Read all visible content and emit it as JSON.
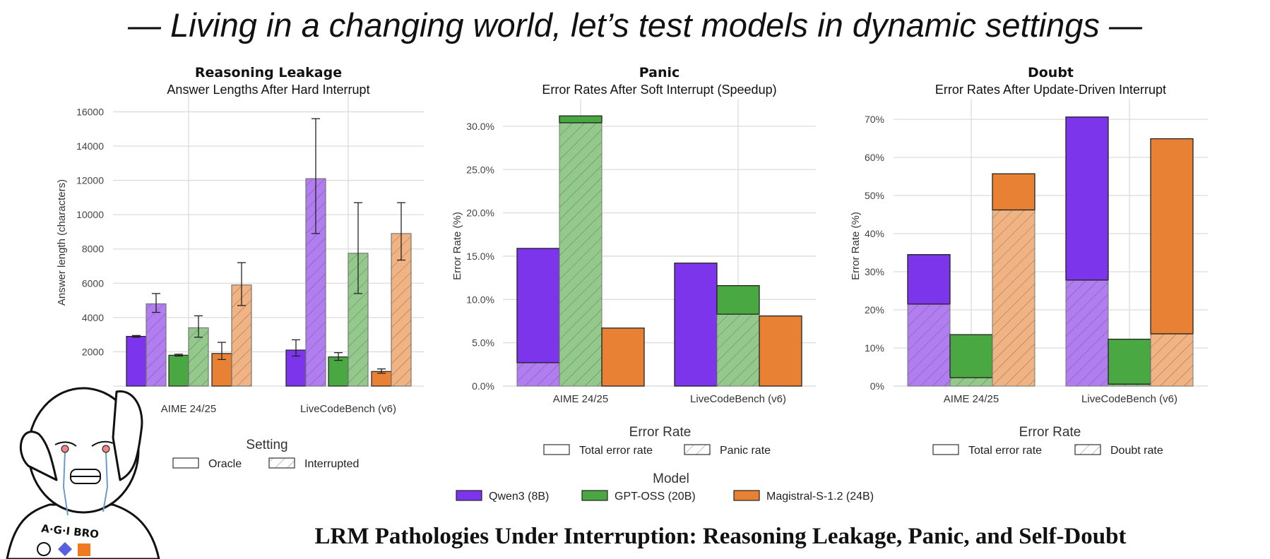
{
  "header": {
    "title": "— Living in a changing world, let’s test models in dynamic settings —"
  },
  "footer": {
    "title": "LRM Pathologies Under Interruption: Reasoning Leakage, Panic, and Self-Doubt"
  },
  "meme": {
    "shirt_text": "A·G·I BRO"
  },
  "colors": {
    "Qwen3 (8B)": {
      "solid": "#7c35ea",
      "light": "#b17df1"
    },
    "GPT-OSS (20B)": {
      "solid": "#4aa842",
      "light": "#94c98c"
    },
    "Magistral-S-1.2 (24B)": {
      "solid": "#e98134",
      "light": "#f2b383"
    }
  },
  "model_legend": {
    "title": "Model",
    "entries": [
      "Qwen3 (8B)",
      "GPT-OSS (20B)",
      "Magistral-S-1.2 (24B)"
    ]
  },
  "chart_data": [
    {
      "type": "bar",
      "title": "Reasoning Leakage",
      "subtitle": "Answer Lengths After Hard Interrupt",
      "xlabel": "",
      "ylabel": "Answer length (characters)",
      "categories": [
        "AIME 24/25",
        "LiveCodeBench (v6)"
      ],
      "ylim": [
        0,
        16000
      ],
      "yticks": [
        2000,
        4000,
        6000,
        8000,
        10000,
        12000,
        14000,
        16000
      ],
      "ytick_labels": [
        "2000",
        "4000",
        "6000",
        "8000",
        "10000",
        "12000",
        "14000",
        "16000"
      ],
      "grid": true,
      "legend": {
        "title": "Setting",
        "entries": [
          "Oracle",
          "Interrupted"
        ],
        "placement": "bottom"
      },
      "series": [
        {
          "model": "Qwen3 (8B)",
          "setting": "Oracle",
          "values": [
            2900,
            2100
          ],
          "err_low": [
            2850,
            1750
          ],
          "err_high": [
            2950,
            2700
          ]
        },
        {
          "model": "Qwen3 (8B)",
          "setting": "Interrupted",
          "values": [
            4800,
            12100
          ],
          "err_low": [
            4300,
            8900
          ],
          "err_high": [
            5400,
            15600
          ]
        },
        {
          "model": "GPT-OSS (20B)",
          "setting": "Oracle",
          "values": [
            1800,
            1700
          ],
          "err_low": [
            1750,
            1500
          ],
          "err_high": [
            1860,
            1950
          ]
        },
        {
          "model": "GPT-OSS (20B)",
          "setting": "Interrupted",
          "values": [
            3400,
            7750
          ],
          "err_low": [
            2850,
            5400
          ],
          "err_high": [
            4100,
            10700
          ]
        },
        {
          "model": "Magistral-S-1.2 (24B)",
          "setting": "Oracle",
          "values": [
            1900,
            850
          ],
          "err_low": [
            1550,
            750
          ],
          "err_high": [
            2550,
            1000
          ]
        },
        {
          "model": "Magistral-S-1.2 (24B)",
          "setting": "Interrupted",
          "values": [
            5900,
            8900
          ],
          "err_low": [
            4700,
            7350
          ],
          "err_high": [
            7200,
            10700
          ]
        }
      ]
    },
    {
      "type": "bar",
      "stacked_overlay": true,
      "title": "Panic",
      "subtitle": "Error Rates After Soft Interrupt (Speedup)",
      "xlabel": "",
      "ylabel": "Error Rate (%)",
      "categories": [
        "AIME 24/25",
        "LiveCodeBench (v6)"
      ],
      "ylim": [
        0,
        32
      ],
      "yticks": [
        0,
        5,
        10,
        15,
        20,
        25,
        30
      ],
      "ytick_labels": [
        "0.0%",
        "5.0%",
        "10.0%",
        "15.0%",
        "20.0%",
        "25.0%",
        "30.0%"
      ],
      "grid": true,
      "legend": {
        "title": "Error Rate",
        "entries": [
          "Total error rate",
          "Panic rate"
        ],
        "placement": "bottom"
      },
      "series": [
        {
          "model": "Qwen3 (8B)",
          "total": [
            15.9,
            14.2
          ],
          "sub": [
            2.7,
            0.0
          ]
        },
        {
          "model": "GPT-OSS (20B)",
          "total": [
            31.2,
            11.6
          ],
          "sub": [
            30.4,
            8.3
          ]
        },
        {
          "model": "Magistral-S-1.2 (24B)",
          "total": [
            6.7,
            8.1
          ],
          "sub": [
            0.0,
            0.0
          ]
        }
      ]
    },
    {
      "type": "bar",
      "stacked_overlay": true,
      "title": "Doubt",
      "subtitle": "Error Rates After Update-Driven Interrupt",
      "xlabel": "",
      "ylabel": "Error Rate (%)",
      "categories": [
        "AIME 24/25",
        "LiveCodeBench (v6)"
      ],
      "ylim": [
        0,
        72
      ],
      "yticks": [
        0,
        10,
        20,
        30,
        40,
        50,
        60,
        70
      ],
      "ytick_labels": [
        "0%",
        "10%",
        "20%",
        "30%",
        "40%",
        "50%",
        "60%",
        "70%"
      ],
      "grid": true,
      "legend": {
        "title": "Error Rate",
        "entries": [
          "Total error rate",
          "Doubt rate"
        ],
        "placement": "bottom"
      },
      "series": [
        {
          "model": "Qwen3 (8B)",
          "total": [
            34.5,
            70.6
          ],
          "sub": [
            21.5,
            27.8
          ]
        },
        {
          "model": "GPT-OSS (20B)",
          "total": [
            13.5,
            12.3
          ],
          "sub": [
            2.2,
            0.5
          ]
        },
        {
          "model": "Magistral-S-1.2 (24B)",
          "total": [
            55.7,
            64.9
          ],
          "sub": [
            46.2,
            13.7
          ]
        }
      ]
    }
  ]
}
